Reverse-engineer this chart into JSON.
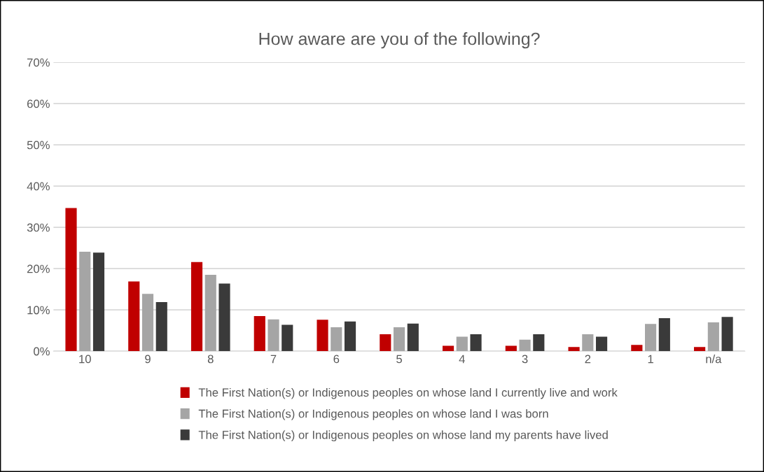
{
  "chart_data": {
    "type": "bar",
    "title": "How aware are you of the following?",
    "categories": [
      "10",
      "9",
      "8",
      "7",
      "6",
      "5",
      "4",
      "3",
      "2",
      "1",
      "n/a"
    ],
    "series": [
      {
        "name": "The First Nation(s) or Indigenous peoples on whose land I currently live and work",
        "color": "#c00000",
        "values": [
          34.7,
          16.9,
          21.6,
          8.5,
          7.6,
          4.1,
          1.3,
          1.3,
          1.0,
          1.5,
          1.0
        ]
      },
      {
        "name": "The First Nation(s) or Indigenous peoples on whose land I was born",
        "color": "#a5a5a5",
        "values": [
          24.1,
          13.9,
          18.5,
          7.7,
          5.8,
          5.8,
          3.5,
          2.8,
          4.1,
          6.6,
          7.0
        ]
      },
      {
        "name": "The First Nation(s) or Indigenous peoples on whose land my parents have lived",
        "color": "#3a3a3a",
        "values": [
          23.9,
          11.9,
          16.4,
          6.4,
          7.2,
          6.7,
          4.1,
          4.1,
          3.5,
          8.0,
          8.3
        ]
      }
    ],
    "ylim": [
      0,
      70
    ],
    "yticks": [
      {
        "value": 0,
        "label": "0%"
      },
      {
        "value": 10,
        "label": "10%"
      },
      {
        "value": 20,
        "label": "20%"
      },
      {
        "value": 30,
        "label": "30%"
      },
      {
        "value": 40,
        "label": "40%"
      },
      {
        "value": 50,
        "label": "50%"
      },
      {
        "value": 60,
        "label": "60%"
      },
      {
        "value": 70,
        "label": "70%"
      }
    ],
    "grid": "y",
    "legend": "bottom"
  }
}
